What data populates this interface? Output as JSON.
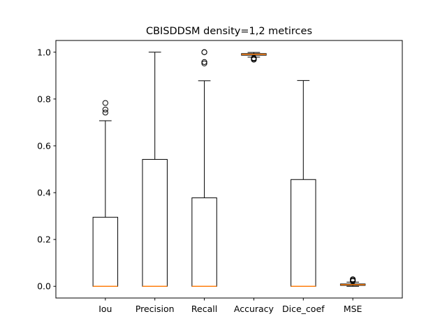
{
  "chart_data": {
    "type": "boxplot",
    "title": "CBISDDSM density=1,2 metirces",
    "xlabel": "",
    "ylabel": "",
    "ylim": [
      -0.05,
      1.05
    ],
    "yticks": [
      0.0,
      0.2,
      0.4,
      0.6,
      0.8,
      1.0
    ],
    "ytick_labels": [
      "0.0",
      "0.2",
      "0.4",
      "0.6",
      "0.8",
      "1.0"
    ],
    "grid": false,
    "categories": [
      "Iou",
      "Precision",
      "Recall",
      "Accuracy",
      "Dice_coef",
      "MSE"
    ],
    "boxes": [
      {
        "label": "Iou",
        "whislo": 0.0,
        "q1": 0.0,
        "med": 0.0,
        "q3": 0.295,
        "whishi": 0.707,
        "fliers": [
          0.742,
          0.755,
          0.783
        ]
      },
      {
        "label": "Precision",
        "whislo": 0.0,
        "q1": 0.0,
        "med": 0.0,
        "q3": 0.542,
        "whishi": 1.0,
        "fliers": []
      },
      {
        "label": "Recall",
        "whislo": 0.0,
        "q1": 0.0,
        "med": 0.0,
        "q3": 0.378,
        "whishi": 0.878,
        "fliers": [
          0.952,
          0.958,
          1.0,
          1.0
        ]
      },
      {
        "label": "Accuracy",
        "whislo": 0.979,
        "q1": 0.987,
        "med": 0.991,
        "q3": 0.994,
        "whishi": 0.999,
        "fliers": [
          0.968,
          0.972,
          0.975
        ]
      },
      {
        "label": "Dice_coef",
        "whislo": 0.0,
        "q1": 0.0,
        "med": 0.0,
        "q3": 0.456,
        "whishi": 0.879,
        "fliers": []
      },
      {
        "label": "MSE",
        "whislo": 0.0,
        "q1": 0.004,
        "med": 0.007,
        "q3": 0.01,
        "whishi": 0.018,
        "fliers": [
          0.022,
          0.026,
          0.03
        ]
      }
    ],
    "colors": {
      "box": "#000000",
      "median": "#ff7f0e",
      "flier": "#000000"
    }
  }
}
